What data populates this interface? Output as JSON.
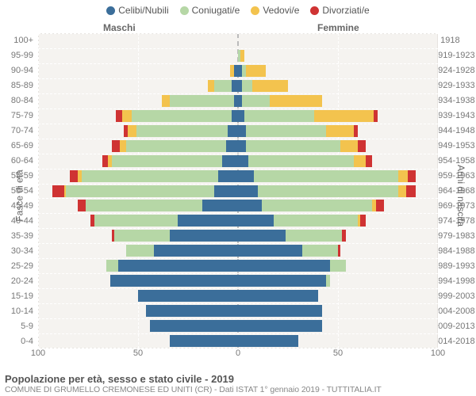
{
  "legend": [
    {
      "label": "Celibi/Nubili",
      "color": "#3b6e9a"
    },
    {
      "label": "Coniugati/e",
      "color": "#b6d7a6"
    },
    {
      "label": "Vedovi/e",
      "color": "#f3c34e"
    },
    {
      "label": "Divorziati/e",
      "color": "#cf3333"
    }
  ],
  "header": {
    "males": "Maschi",
    "females": "Femmine"
  },
  "axis_titles": {
    "left": "Fasce di età",
    "right": "Anni di nascita"
  },
  "x_ticks": [
    100,
    50,
    0,
    50,
    100
  ],
  "x_max": 100,
  "plot": {
    "bg": "#f5f3f0",
    "grid": "#ffffff",
    "center": "#b5b5b5"
  },
  "footer": {
    "line1": "Popolazione per età, sesso e stato civile - 2019",
    "line2": "COMUNE DI GRUMELLO CREMONESE ED UNITI (CR) - Dati ISTAT 1° gennaio 2019 - TUTTITALIA.IT"
  },
  "rows": [
    {
      "age": "100+",
      "birth": "≤ 1918",
      "m": [
        0,
        0,
        0,
        0
      ],
      "f": [
        0,
        0,
        0,
        0
      ]
    },
    {
      "age": "95-99",
      "birth": "1919-1923",
      "m": [
        0,
        0,
        0,
        0
      ],
      "f": [
        0,
        1,
        2,
        0
      ]
    },
    {
      "age": "90-94",
      "birth": "1924-1928",
      "m": [
        2,
        0,
        2,
        0
      ],
      "f": [
        2,
        2,
        10,
        0
      ]
    },
    {
      "age": "85-89",
      "birth": "1929-1933",
      "m": [
        3,
        9,
        3,
        0
      ],
      "f": [
        2,
        5,
        18,
        0
      ]
    },
    {
      "age": "80-84",
      "birth": "1934-1938",
      "m": [
        2,
        32,
        4,
        0
      ],
      "f": [
        2,
        14,
        26,
        0
      ]
    },
    {
      "age": "75-79",
      "birth": "1939-1943",
      "m": [
        3,
        50,
        5,
        3
      ],
      "f": [
        3,
        35,
        30,
        2
      ]
    },
    {
      "age": "70-74",
      "birth": "1944-1948",
      "m": [
        5,
        46,
        4,
        2
      ],
      "f": [
        4,
        40,
        14,
        2
      ]
    },
    {
      "age": "65-69",
      "birth": "1949-1953",
      "m": [
        6,
        50,
        3,
        4
      ],
      "f": [
        4,
        47,
        9,
        4
      ]
    },
    {
      "age": "60-64",
      "birth": "1954-1958",
      "m": [
        8,
        55,
        2,
        3
      ],
      "f": [
        5,
        53,
        6,
        3
      ]
    },
    {
      "age": "55-59",
      "birth": "1959-1963",
      "m": [
        10,
        68,
        2,
        4
      ],
      "f": [
        8,
        72,
        5,
        4
      ]
    },
    {
      "age": "50-54",
      "birth": "1964-1968",
      "m": [
        12,
        74,
        1,
        6
      ],
      "f": [
        10,
        70,
        4,
        5
      ]
    },
    {
      "age": "45-49",
      "birth": "1969-1973",
      "m": [
        18,
        58,
        0,
        4
      ],
      "f": [
        12,
        55,
        2,
        4
      ]
    },
    {
      "age": "40-44",
      "birth": "1974-1978",
      "m": [
        30,
        42,
        0,
        2
      ],
      "f": [
        18,
        42,
        1,
        3
      ]
    },
    {
      "age": "35-39",
      "birth": "1979-1983",
      "m": [
        34,
        28,
        0,
        1
      ],
      "f": [
        24,
        28,
        0,
        2
      ]
    },
    {
      "age": "30-34",
      "birth": "1984-1988",
      "m": [
        42,
        14,
        0,
        0
      ],
      "f": [
        32,
        18,
        0,
        1
      ]
    },
    {
      "age": "25-29",
      "birth": "1989-1993",
      "m": [
        60,
        6,
        0,
        0
      ],
      "f": [
        46,
        8,
        0,
        0
      ]
    },
    {
      "age": "20-24",
      "birth": "1994-1998",
      "m": [
        64,
        0,
        0,
        0
      ],
      "f": [
        44,
        2,
        0,
        0
      ]
    },
    {
      "age": "15-19",
      "birth": "1999-2003",
      "m": [
        50,
        0,
        0,
        0
      ],
      "f": [
        40,
        0,
        0,
        0
      ]
    },
    {
      "age": "10-14",
      "birth": "2004-2008",
      "m": [
        46,
        0,
        0,
        0
      ],
      "f": [
        42,
        0,
        0,
        0
      ]
    },
    {
      "age": "5-9",
      "birth": "2009-2013",
      "m": [
        44,
        0,
        0,
        0
      ],
      "f": [
        42,
        0,
        0,
        0
      ]
    },
    {
      "age": "0-4",
      "birth": "2014-2018",
      "m": [
        34,
        0,
        0,
        0
      ],
      "f": [
        30,
        0,
        0,
        0
      ]
    }
  ]
}
